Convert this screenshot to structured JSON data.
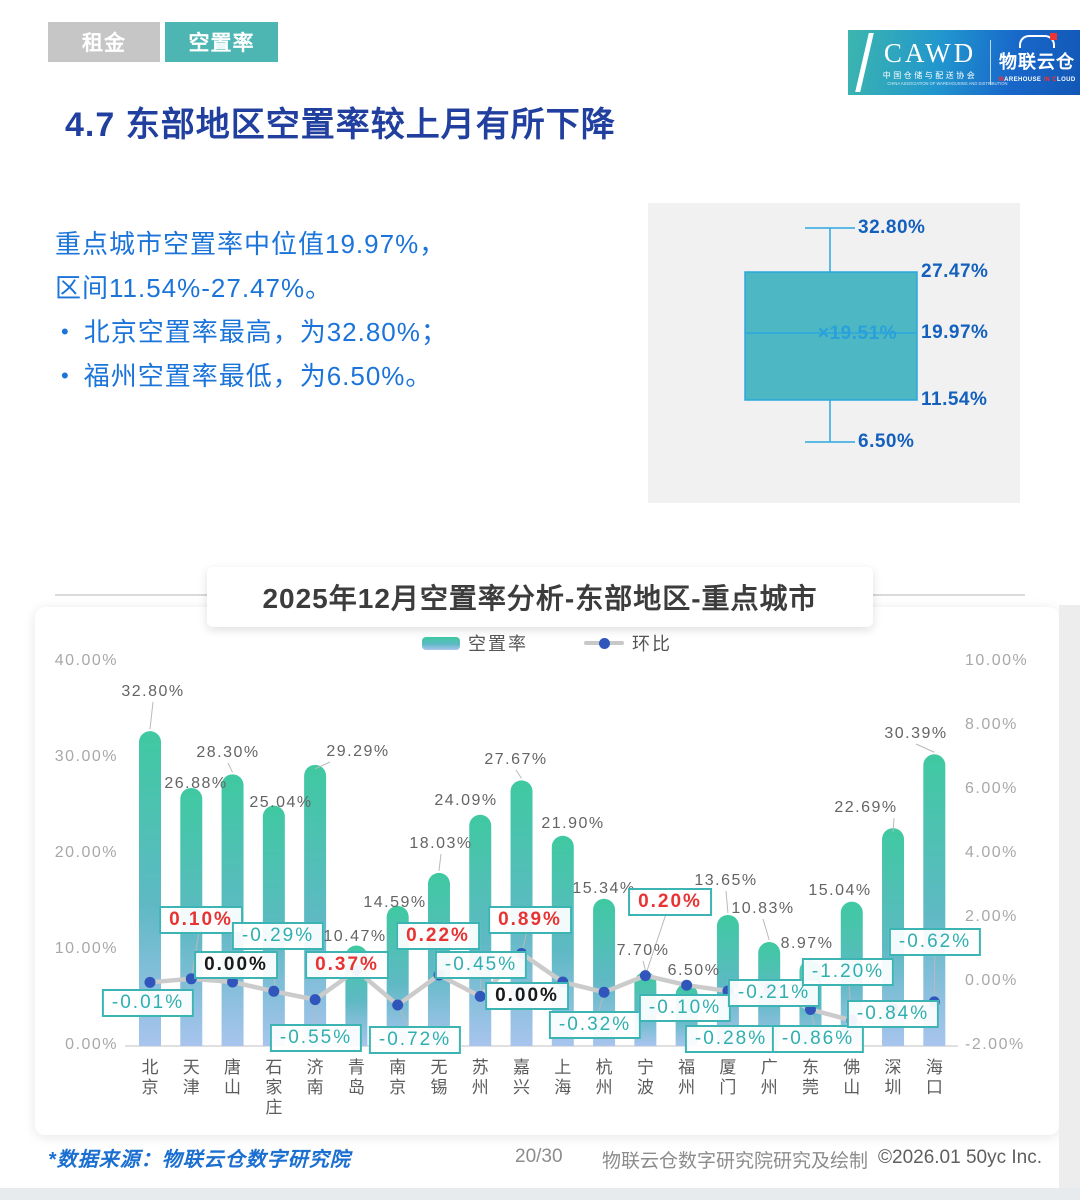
{
  "tabs": {
    "rent": "租金",
    "vacancy": "空置率"
  },
  "logo": {
    "cawd": "CAWD",
    "cawd_sub": "中国仓储与配送协会",
    "cawd_sub_en": "CHINA ASSOCIATION OF WAREHOUSING AND DISTRIBUTION",
    "wh_cn": "物联云仓",
    "wh_en": "WAREHOUSE IN CLOUD"
  },
  "heading": "4.7 东部地区空置率较上月有所下降",
  "summary": {
    "line1": "重点城市空置率中位值19.97%，",
    "line2": "区间11.54%-27.47%。",
    "bullet1": "北京空置率最高，为32.80%；",
    "bullet2": "福州空置率最低，为6.50%。"
  },
  "boxplot": {
    "max": 32.8,
    "q3": 27.47,
    "median": 19.97,
    "mean": 19.51,
    "q1": 11.54,
    "min": 6.5,
    "max_label": "32.80%",
    "q3_label": "27.47%",
    "median_label": "19.97%",
    "mean_label": "×19.51%",
    "q1_label": "11.54%",
    "min_label": "6.50%",
    "box_fill": "#4db7c4",
    "box_stroke": "#2aa7e0"
  },
  "chart_data": {
    "type": "bar+line",
    "title": "2025年12月空置率分析-东部地区-重点城市",
    "categories": [
      "北京",
      "天津",
      "唐山",
      "石家庄",
      "济南",
      "青岛",
      "南京",
      "无锡",
      "苏州",
      "嘉兴",
      "上海",
      "杭州",
      "宁波",
      "福州",
      "厦门",
      "广州",
      "东莞",
      "佛山",
      "深圳",
      "海口"
    ],
    "series": [
      {
        "name": "空置率",
        "type": "bar",
        "values": [
          32.8,
          26.88,
          28.3,
          25.04,
          29.29,
          10.47,
          14.59,
          18.03,
          24.09,
          27.67,
          21.9,
          15.34,
          7.7,
          6.5,
          13.65,
          10.83,
          8.97,
          15.04,
          22.69,
          30.39
        ],
        "labels": [
          "32.80%",
          "26.88%",
          "28.30%",
          "25.04%",
          "29.29%",
          "10.47%",
          "14.59%",
          "18.03%",
          "24.09%",
          "27.67%",
          "21.90%",
          "15.34%",
          "7.70%",
          "6.50%",
          "13.65%",
          "10.83%",
          "8.97%",
          "15.04%",
          "22.69%",
          "30.39%"
        ]
      },
      {
        "name": "环比",
        "type": "line",
        "values": [
          -0.01,
          0.1,
          0.0,
          -0.29,
          -0.55,
          0.37,
          -0.72,
          0.22,
          -0.45,
          0.89,
          0.0,
          -0.32,
          0.2,
          -0.1,
          -0.28,
          -0.21,
          -0.86,
          -1.2,
          -0.84,
          -0.62
        ],
        "labels": [
          "-0.01%",
          "0.10%",
          "0.00%",
          "-0.29%",
          "-0.55%",
          "0.37%",
          "-0.72%",
          "0.22%",
          "-0.45%",
          "0.89%",
          "0.00%",
          "-0.32%",
          "0.20%",
          "-0.10%",
          "-0.28%",
          "-0.21%",
          "-0.86%",
          "-1.20%",
          "-0.84%",
          "-0.62%"
        ]
      }
    ],
    "left_axis": {
      "min": 0,
      "max": 40,
      "ticks": [
        "0.00%",
        "10.00%",
        "20.00%",
        "30.00%",
        "40.00%"
      ]
    },
    "right_axis": {
      "min": -2,
      "max": 10,
      "ticks": [
        "-2.00%",
        "0.00%",
        "2.00%",
        "4.00%",
        "6.00%",
        "8.00%",
        "10.00%"
      ]
    },
    "legend_position": "top",
    "colors": {
      "bar_gradient": [
        "#3fc9a1",
        "#5eb9c4",
        "#a8c4ee"
      ],
      "line": "#cbcbcb",
      "dot": "#3056bb",
      "label_positive": "#e83333",
      "label_negative": "#2fafaf",
      "label_zero": "#1a1a1a",
      "label_border": "#3db4b4"
    }
  },
  "footer": {
    "source": "*数据来源：物联云仓数字研究院",
    "page": "20/30",
    "credit": "物联云仓数字研究院研究及绘制",
    "copyright": "©2026.01 50yc Inc."
  }
}
